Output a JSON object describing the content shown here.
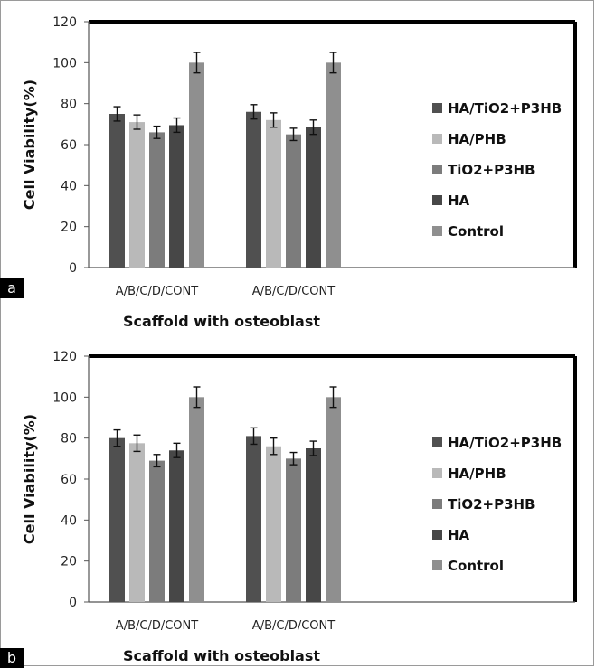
{
  "chart_data": [
    {
      "panel": "a",
      "type": "bar",
      "ylabel": "Cell Viability(%)",
      "xlabel": "Scaffold with osteoblast",
      "categories": [
        "A/B/C/D/CONT",
        "A/B/C/D/CONT"
      ],
      "ylim": [
        0,
        120
      ],
      "yticks": [
        0,
        20,
        40,
        60,
        80,
        100,
        120
      ],
      "grid": false,
      "legend_position": "right",
      "series": [
        {
          "name": "HA/TiO2+P3HB",
          "color": "#505050",
          "values": [
            75,
            76
          ],
          "errors": [
            3.5,
            3.5
          ]
        },
        {
          "name": "HA/PHB",
          "color": "#b9b9b9",
          "values": [
            71,
            72
          ],
          "errors": [
            3.5,
            3.5
          ]
        },
        {
          "name": "TiO2+P3HB",
          "color": "#7c7c7c",
          "values": [
            66,
            65
          ],
          "errors": [
            3,
            3
          ]
        },
        {
          "name": "HA",
          "color": "#474747",
          "values": [
            69.5,
            68.5
          ],
          "errors": [
            3.5,
            3.5
          ]
        },
        {
          "name": "Control",
          "color": "#8f8f8f",
          "values": [
            100,
            100
          ],
          "errors": [
            5,
            5
          ]
        }
      ]
    },
    {
      "panel": "b",
      "type": "bar",
      "ylabel": "Cell Viability(%)",
      "xlabel": "Scaffold with osteoblast",
      "categories": [
        "A/B/C/D/CONT",
        "A/B/C/D/CONT"
      ],
      "ylim": [
        0,
        120
      ],
      "yticks": [
        0,
        20,
        40,
        60,
        80,
        100,
        120
      ],
      "grid": false,
      "legend_position": "right",
      "series": [
        {
          "name": "HA/TiO2+P3HB",
          "color": "#505050",
          "values": [
            80,
            81
          ],
          "errors": [
            4,
            4
          ]
        },
        {
          "name": "HA/PHB",
          "color": "#b9b9b9",
          "values": [
            77.5,
            76
          ],
          "errors": [
            4,
            4
          ]
        },
        {
          "name": "TiO2+P3HB",
          "color": "#7c7c7c",
          "values": [
            69,
            70
          ],
          "errors": [
            3,
            3
          ]
        },
        {
          "name": "HA",
          "color": "#474747",
          "values": [
            74,
            75
          ],
          "errors": [
            3.5,
            3.5
          ]
        },
        {
          "name": "Control",
          "color": "#8f8f8f",
          "values": [
            100,
            100
          ],
          "errors": [
            5,
            5
          ]
        }
      ]
    }
  ],
  "panels": {
    "a": {
      "tag": "a"
    },
    "b": {
      "tag": "b"
    }
  }
}
